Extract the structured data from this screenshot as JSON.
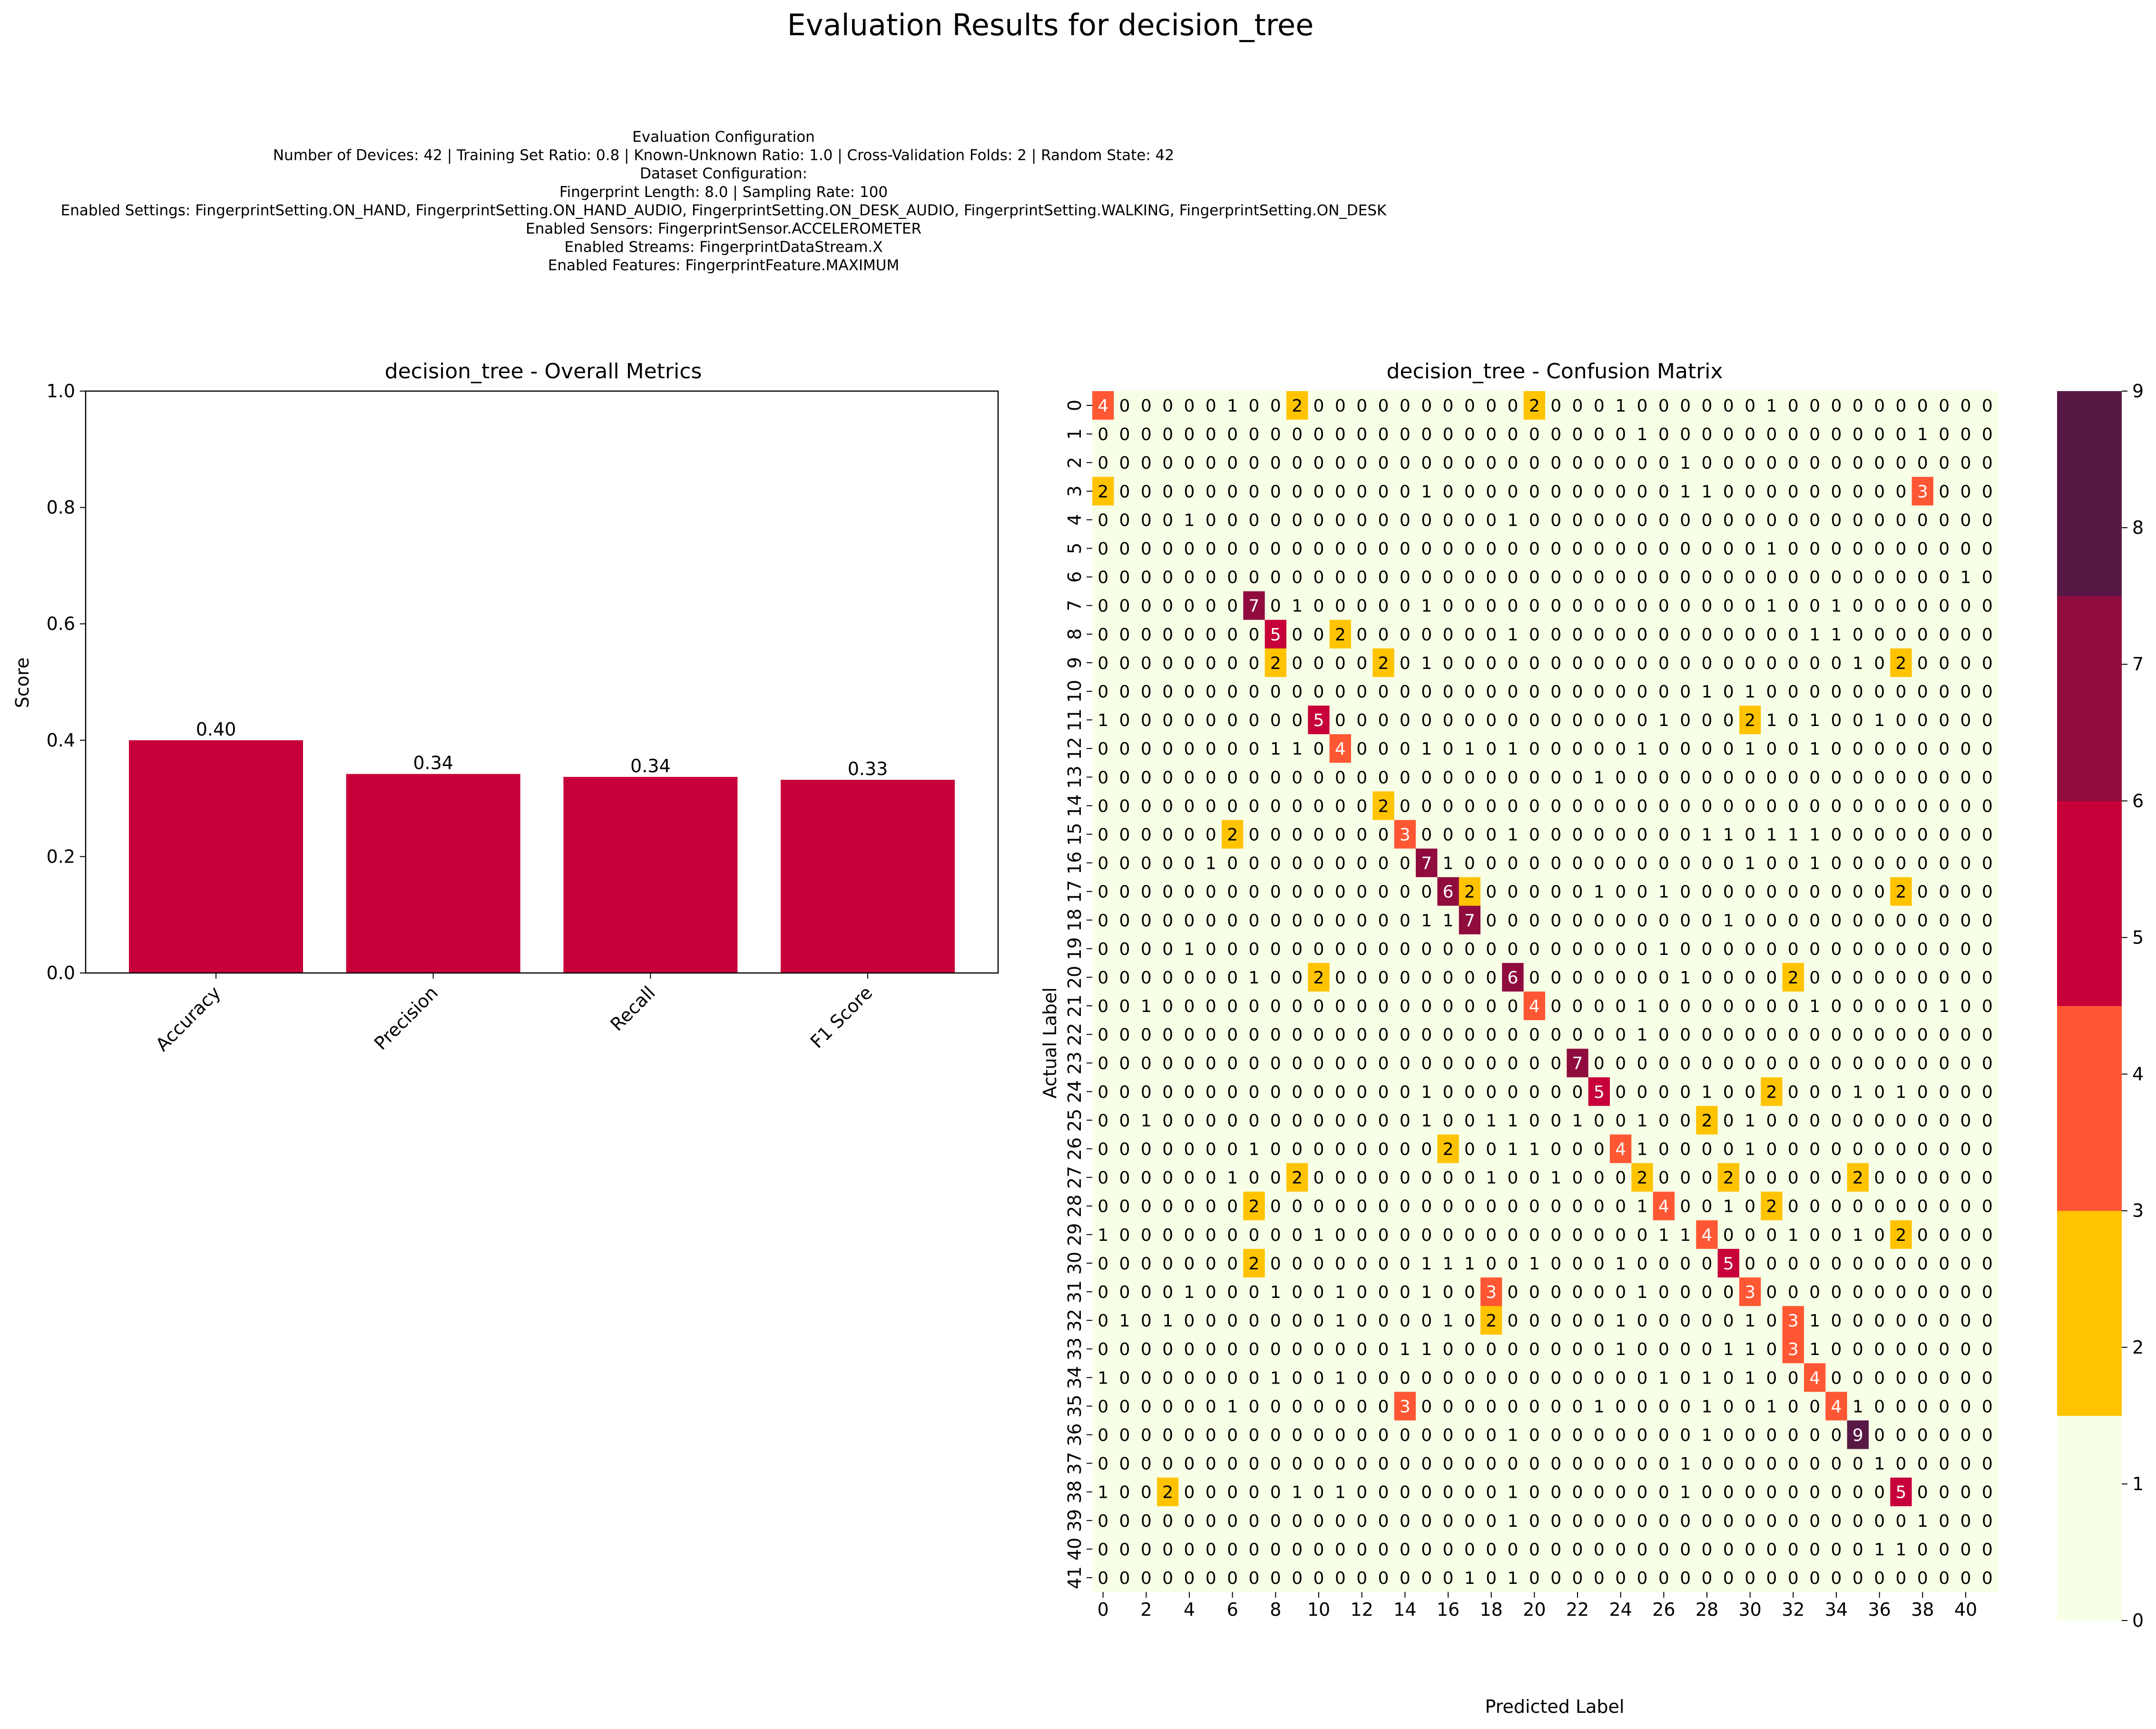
{
  "suptitle": "Evaluation Results for decision_tree",
  "config_lines": [
    "Evaluation Configuration",
    "Number of Devices: 42 | Training Set Ratio: 0.8 | Known-Unknown Ratio: 1.0 | Cross-Validation Folds: 2 | Random State: 42",
    "Dataset Configuration:",
    "Fingerprint Length: 8.0 | Sampling Rate: 100",
    "Enabled Settings: FingerprintSetting.ON_HAND, FingerprintSetting.ON_HAND_AUDIO, FingerprintSetting.ON_DESK_AUDIO, FingerprintSetting.WALKING, FingerprintSetting.ON_DESK",
    "Enabled Sensors: FingerprintSensor.ACCELEROMETER",
    "Enabled Streams: FingerprintDataStream.X",
    "Enabled Features: FingerprintFeature.MAXIMUM"
  ],
  "colors": {
    "bar": "#c8003a",
    "colormap": [
      "#f7ffe6",
      "#ffc300",
      "#ff5733",
      "#c70039",
      "#900c3f",
      "#581845"
    ]
  },
  "chart_data": [
    {
      "type": "bar",
      "title": "decision_tree - Overall Metrics",
      "xlabel": "",
      "ylabel": "Score",
      "categories": [
        "Accuracy",
        "Precision",
        "Recall",
        "F1 Score"
      ],
      "values": [
        0.4,
        0.342,
        0.337,
        0.332
      ],
      "value_labels": [
        "0.40",
        "0.34",
        "0.34",
        "0.33"
      ],
      "ylim": [
        0,
        1.0
      ],
      "yticks": [
        "0.0",
        "0.2",
        "0.4",
        "0.6",
        "0.8",
        "1.0"
      ],
      "grid": false
    },
    {
      "type": "heatmap",
      "title": "decision_tree - Confusion Matrix",
      "xlabel": "Predicted Label",
      "ylabel": "Actual Label",
      "xtick_labels": [
        "0",
        "2",
        "4",
        "6",
        "8",
        "10",
        "12",
        "14",
        "16",
        "18",
        "20",
        "22",
        "24",
        "26",
        "28",
        "30",
        "32",
        "34",
        "36",
        "38",
        "40"
      ],
      "ytick_labels": [
        "0",
        "1",
        "2",
        "3",
        "4",
        "5",
        "6",
        "7",
        "8",
        "9",
        "10",
        "11",
        "12",
        "13",
        "14",
        "15",
        "16",
        "17",
        "18",
        "19",
        "20",
        "21",
        "22",
        "23",
        "24",
        "25",
        "26",
        "27",
        "28",
        "29",
        "30",
        "31",
        "32",
        "33",
        "34",
        "35",
        "36",
        "37",
        "38",
        "39",
        "40",
        "41"
      ],
      "colorbar_ticks": [
        "0",
        "1",
        "2",
        "3",
        "4",
        "5",
        "6",
        "7",
        "8",
        "9"
      ],
      "colorbar_range": [
        0,
        9
      ],
      "matrix": [
        "4 0 0 0 0 0 1 0 0 2 0 0 0 0 0 0 0 0 0 0 2 0 0 0 1 0 0 0 0 0 0 1 0 0 0 0 0 0 0 0 0 0",
        "0 0 0 0 0 0 0 0 0 0 0 0 0 0 0 0 0 0 0 0 0 0 0 0 0 1 0 0 0 0 0 0 0 0 0 0 0 0 1 0 0 0",
        "0 0 0 0 0 0 0 0 0 0 0 0 0 0 0 0 0 0 0 0 0 0 0 0 0 0 0 1 0 0 0 0 0 0 0 0 0 0 0 0 0 0",
        "2 0 0 0 0 0 0 0 0 0 0 0 0 0 0 1 0 0 0 0 0 0 0 0 0 0 0 1 1 0 0 0 0 0 0 0 0 0 3 0 0 0",
        "0 0 0 0 1 0 0 0 0 0 0 0 0 0 0 0 0 0 0 1 0 0 0 0 0 0 0 0 0 0 0 0 0 0 0 0 0 0 0 0 0 0",
        "0 0 0 0 0 0 0 0 0 0 0 0 0 0 0 0 0 0 0 0 0 0 0 0 0 0 0 0 0 0 0 1 0 0 0 0 0 0 0 0 0 0",
        "0 0 0 0 0 0 0 0 0 0 0 0 0 0 0 0 0 0 0 0 0 0 0 0 0 0 0 0 0 0 0 0 0 0 0 0 0 0 0 0 1 0",
        "0 0 0 0 0 0 0 7 0 1 0 0 0 0 0 1 0 0 0 0 0 0 0 0 0 0 0 0 0 0 0 1 0 0 1 0 0 0 0 0 0 0",
        "0 0 0 0 0 0 0 0 5 0 0 2 0 0 0 0 0 0 0 1 0 0 0 0 0 0 0 0 0 0 0 0 0 1 1 0 0 0 0 0 0 0",
        "0 0 0 0 0 0 0 0 2 0 0 0 0 2 0 1 0 0 0 0 0 0 0 0 0 0 0 0 0 0 0 0 0 0 0 1 0 2 0 0 0 0",
        "0 0 0 0 0 0 0 0 0 0 0 0 0 0 0 0 0 0 0 0 0 0 0 0 0 0 0 0 1 0 1 0 0 0 0 0 0 0 0 0 0 0",
        "1 0 0 0 0 0 0 0 0 0 5 0 0 0 0 0 0 0 0 0 0 0 0 0 0 0 1 0 0 0 2 1 0 1 0 0 1 0 0 0 0 0",
        "0 0 0 0 0 0 0 0 1 1 0 4 0 0 0 1 0 1 0 1 0 0 0 0 0 1 0 0 0 0 1 0 0 1 0 0 0 0 0 0 0 0",
        "0 0 0 0 0 0 0 0 0 0 0 0 0 0 0 0 0 0 0 0 0 0 0 1 0 0 0 0 0 0 0 0 0 0 0 0 0 0 0 0 0 0",
        "0 0 0 0 0 0 0 0 0 0 0 0 0 2 0 0 0 0 0 0 0 0 0 0 0 0 0 0 0 0 0 0 0 0 0 0 0 0 0 0 0 0",
        "0 0 0 0 0 0 2 0 0 0 0 0 0 0 3 0 0 0 0 1 0 0 0 0 0 0 0 0 1 1 0 1 1 1 0 0 0 0 0 0 0 0",
        "0 0 0 0 0 1 0 0 0 0 0 0 0 0 0 7 1 0 0 0 0 0 0 0 0 0 0 0 0 0 1 0 0 1 0 0 0 0 0 0 0 0",
        "0 0 0 0 0 0 0 0 0 0 0 0 0 0 0 0 6 2 0 0 0 0 0 1 0 0 1 0 0 0 0 0 0 0 0 0 0 2 0 0 0 0",
        "0 0 0 0 0 0 0 0 0 0 0 0 0 0 0 1 1 7 0 0 0 0 0 0 0 0 0 0 0 1 0 0 0 0 0 0 0 0 0 0 0 0",
        "0 0 0 0 1 0 0 0 0 0 0 0 0 0 0 0 0 0 0 0 0 0 0 0 0 0 1 0 0 0 0 0 0 0 0 0 0 0 0 0 0 0",
        "0 0 0 0 0 0 0 1 0 0 2 0 0 0 0 0 0 0 0 6 0 0 0 0 0 0 0 1 0 0 0 0 2 0 0 0 0 0 0 0 0 0",
        "0 0 1 0 0 0 0 0 0 0 0 0 0 0 0 0 0 0 0 0 4 0 0 0 0 1 0 0 0 0 0 0 0 1 0 0 0 0 0 1 0 0",
        "0 0 0 0 0 0 0 0 0 0 0 0 0 0 0 0 0 0 0 0 0 0 0 0 0 1 0 0 0 0 0 0 0 0 0 0 0 0 0 0 0 0",
        "0 0 0 0 0 0 0 0 0 0 0 0 0 0 0 0 0 0 0 0 0 0 7 0 0 0 0 0 0 0 0 0 0 0 0 0 0 0 0 0 0 0",
        "0 0 0 0 0 0 0 0 0 0 0 0 0 0 0 1 0 0 0 0 0 0 0 5 0 0 0 0 1 0 0 2 0 0 0 1 0 1 0 0 0 0",
        "0 0 1 0 0 0 0 0 0 0 0 0 0 0 0 1 0 0 1 1 0 0 1 0 0 1 0 0 2 0 1 0 0 0 0 0 0 0 0 0 0 0",
        "0 0 0 0 0 0 0 1 0 0 0 0 0 0 0 0 2 0 0 1 1 0 0 0 4 1 0 0 0 0 1 0 0 0 0 0 0 0 0 0 0 0",
        "0 0 0 0 0 0 1 0 0 2 0 0 0 0 0 0 0 0 1 0 0 1 0 0 0 2 0 0 0 2 0 0 0 0 0 2 0 0 0 0 0 0",
        "0 0 0 0 0 0 0 2 0 0 0 0 0 0 0 0 0 0 0 0 0 0 0 0 0 1 4 0 0 1 0 2 0 0 0 0 0 0 0 0 0 0",
        "1 0 0 0 0 0 0 0 0 0 1 0 0 0 0 0 0 0 0 0 0 0 0 0 0 0 1 1 4 0 0 0 1 0 0 1 0 2 0 0 0 0",
        "0 0 0 0 0 0 0 2 0 0 0 0 0 0 0 1 1 1 0 0 1 0 0 0 1 0 0 0 0 5 0 0 0 0 0 0 0 0 0 0 0 0",
        "0 0 0 0 1 0 0 0 1 0 0 1 0 0 0 1 0 0 3 0 0 0 0 0 0 1 0 0 0 0 3 0 0 0 0 0 0 0 0 0 0 0",
        "0 1 0 1 0 0 0 0 0 0 0 1 0 0 0 0 1 0 2 0 0 0 0 0 1 0 0 0 0 0 1 0 3 1 0 0 0 0 0 0 0 0",
        "0 0 0 0 0 0 0 0 0 0 0 0 0 0 1 1 0 0 0 0 0 0 0 0 1 0 0 0 0 1 1 0 3 1 0 0 0 0 0 0 0 0",
        "1 0 0 0 0 0 0 0 1 0 0 1 0 0 0 0 0 0 0 0 0 0 0 0 0 0 1 0 1 0 1 0 0 4 0 0 0 0 0 0 0 0",
        "0 0 0 0 0 0 1 0 0 0 0 0 0 0 3 0 0 0 0 0 0 0 0 1 0 0 0 0 1 0 0 1 0 0 4 1 0 0 0 0 0 0",
        "0 0 0 0 0 0 0 0 0 0 0 0 0 0 0 0 0 0 0 1 0 0 0 0 0 0 0 0 1 0 0 0 0 0 0 9 0 0 0 0 0 0",
        "0 0 0 0 0 0 0 0 0 0 0 0 0 0 0 0 0 0 0 0 0 0 0 0 0 0 0 1 0 0 0 0 0 0 0 0 1 0 0 0 0 0",
        "1 0 0 2 0 0 0 0 0 1 0 1 0 0 0 0 0 0 0 1 0 0 0 0 0 0 0 1 0 0 0 0 0 0 0 0 0 5 0 0 0 0",
        "0 0 0 0 0 0 0 0 0 0 0 0 0 0 0 0 0 0 0 1 0 0 0 0 0 0 0 0 0 0 0 0 0 0 0 0 0 0 1 0 0 0",
        "0 0 0 0 0 0 0 0 0 0 0 0 0 0 0 0 0 0 0 0 0 0 0 0 0 0 0 0 0 0 0 0 0 0 0 0 1 1 0 0 0 0",
        "0 0 0 0 0 0 0 0 0 0 0 0 0 0 0 0 0 1 0 1 0 0 0 0 0 0 0 0 0 0 0 0 0 0 0 0 0 0 0 0 0 0"
      ]
    }
  ]
}
